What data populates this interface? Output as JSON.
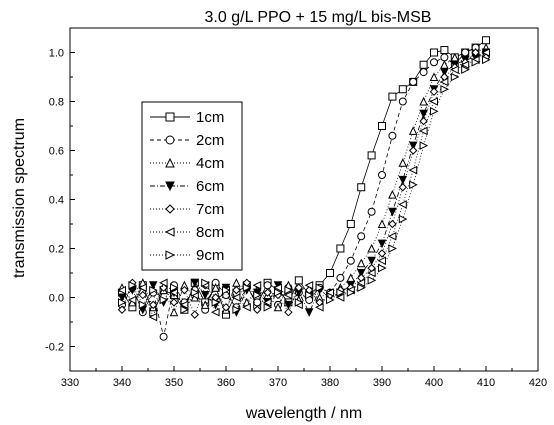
{
  "chart_data": {
    "type": "scatter",
    "title": "3.0 g/L PPO + 15 mg/L bis-MSB",
    "xlabel": "wavelength / nm",
    "ylabel": "transmission spectrum",
    "xlim": [
      330,
      420
    ],
    "ylim": [
      -0.3,
      1.1
    ],
    "x_ticks": [
      330,
      340,
      350,
      360,
      370,
      380,
      390,
      400,
      410,
      420
    ],
    "y_ticks": [
      -0.2,
      0.0,
      0.2,
      0.4,
      0.6,
      0.8,
      1.0
    ],
    "x_tick_labels": [
      "330",
      "340",
      "350",
      "360",
      "370",
      "380",
      "390",
      "400",
      "410",
      "420"
    ],
    "y_tick_labels": [
      "-0.2",
      "0.0",
      "0.2",
      "0.4",
      "0.6",
      "0.8",
      "1.0"
    ],
    "grid": false,
    "legend_position": "left",
    "series": [
      {
        "name": "1cm",
        "marker": "square-open",
        "line": "solid",
        "x": [
          340,
          342,
          344,
          346,
          348,
          350,
          352,
          354,
          356,
          358,
          360,
          362,
          364,
          366,
          368,
          370,
          372,
          374,
          376,
          378,
          380,
          382,
          384,
          386,
          388,
          390,
          392,
          394,
          396,
          398,
          400,
          402,
          404,
          406,
          408,
          410
        ],
        "y": [
          0.02,
          -0.04,
          0.05,
          -0.06,
          0.03,
          0.01,
          -0.05,
          0.06,
          -0.02,
          0.04,
          -0.07,
          0.02,
          0.05,
          -0.03,
          0.06,
          0.03,
          -0.02,
          0.07,
          0.01,
          0.05,
          0.1,
          0.2,
          0.3,
          0.45,
          0.58,
          0.7,
          0.82,
          0.85,
          0.88,
          0.95,
          1.0,
          1.01,
          0.98,
          1.0,
          1.02,
          1.05
        ]
      },
      {
        "name": "2cm",
        "marker": "circle-open",
        "line": "dashed",
        "x": [
          340,
          342,
          344,
          346,
          348,
          350,
          352,
          354,
          356,
          358,
          360,
          362,
          364,
          366,
          368,
          370,
          372,
          374,
          376,
          378,
          380,
          382,
          384,
          386,
          388,
          390,
          392,
          394,
          396,
          398,
          400,
          402,
          404,
          406,
          408,
          410
        ],
        "y": [
          -0.03,
          0.04,
          -0.06,
          0.02,
          -0.16,
          0.05,
          -0.02,
          0.03,
          -0.05,
          0.06,
          0.01,
          -0.04,
          0.04,
          -0.02,
          0.05,
          -0.03,
          0.04,
          0.02,
          -0.01,
          0.04,
          0.02,
          0.08,
          0.15,
          0.25,
          0.35,
          0.5,
          0.66,
          0.8,
          0.88,
          0.92,
          0.96,
          0.98,
          0.95,
          1.0,
          1.02,
          1.0
        ]
      },
      {
        "name": "4cm",
        "marker": "triangle-up-open",
        "line": "dotted",
        "x": [
          340,
          342,
          344,
          346,
          348,
          350,
          352,
          354,
          356,
          358,
          360,
          362,
          364,
          366,
          368,
          370,
          372,
          374,
          376,
          378,
          380,
          382,
          384,
          386,
          388,
          390,
          392,
          394,
          396,
          398,
          400,
          402,
          404,
          406,
          408,
          410
        ],
        "y": [
          0.04,
          -0.02,
          0.06,
          -0.04,
          0.03,
          -0.06,
          0.05,
          0.0,
          -0.03,
          0.04,
          -0.05,
          0.06,
          -0.02,
          0.03,
          0.01,
          -0.04,
          0.05,
          -0.01,
          0.03,
          0.0,
          0.02,
          0.04,
          0.08,
          0.14,
          0.2,
          0.3,
          0.42,
          0.55,
          0.68,
          0.8,
          0.9,
          0.95,
          0.98,
          0.96,
          1.0,
          1.02
        ]
      },
      {
        "name": "6cm",
        "marker": "triangle-down-filled",
        "line": "dashdot",
        "x": [
          340,
          342,
          344,
          346,
          348,
          350,
          352,
          354,
          356,
          358,
          360,
          362,
          364,
          366,
          368,
          370,
          372,
          374,
          376,
          378,
          380,
          382,
          384,
          386,
          388,
          390,
          392,
          394,
          396,
          398,
          400,
          402,
          404,
          406,
          408,
          410
        ],
        "y": [
          0.0,
          0.03,
          -0.05,
          0.05,
          -0.02,
          0.02,
          -0.04,
          0.06,
          0.01,
          -0.03,
          0.04,
          -0.06,
          0.03,
          0.02,
          -0.02,
          0.05,
          -0.03,
          0.02,
          -0.06,
          0.03,
          0.0,
          0.02,
          0.05,
          0.1,
          0.15,
          0.22,
          0.35,
          0.48,
          0.62,
          0.75,
          0.85,
          0.92,
          0.95,
          0.97,
          0.98,
          1.0
        ]
      },
      {
        "name": "7cm",
        "marker": "diamond-open",
        "line": "dotted",
        "x": [
          340,
          342,
          344,
          346,
          348,
          350,
          352,
          354,
          356,
          358,
          360,
          362,
          364,
          366,
          368,
          370,
          372,
          374,
          376,
          378,
          380,
          382,
          384,
          386,
          388,
          390,
          392,
          394,
          396,
          398,
          400,
          402,
          404,
          406,
          408,
          410
        ],
        "y": [
          -0.05,
          0.06,
          0.01,
          -0.03,
          0.04,
          -0.02,
          0.03,
          -0.07,
          0.05,
          0.0,
          -0.04,
          0.03,
          0.06,
          -0.05,
          0.02,
          0.01,
          -0.06,
          0.04,
          0.03,
          -0.02,
          0.01,
          0.03,
          0.04,
          0.08,
          0.12,
          0.18,
          0.3,
          0.45,
          0.6,
          0.72,
          0.84,
          0.9,
          0.94,
          0.96,
          1.0,
          0.98
        ]
      },
      {
        "name": "8cm",
        "marker": "triangle-left-open",
        "line": "dotted",
        "x": [
          340,
          342,
          344,
          346,
          348,
          350,
          352,
          354,
          356,
          358,
          360,
          362,
          364,
          366,
          368,
          370,
          372,
          374,
          376,
          378,
          380,
          382,
          384,
          386,
          388,
          390,
          392,
          394,
          396,
          398,
          400,
          402,
          404,
          406,
          408,
          410
        ],
        "y": [
          0.03,
          -0.01,
          0.04,
          -0.08,
          0.06,
          0.02,
          -0.03,
          0.01,
          0.05,
          -0.06,
          0.03,
          0.0,
          -0.04,
          0.05,
          -0.02,
          0.04,
          0.01,
          -0.03,
          0.05,
          -0.04,
          0.02,
          0.0,
          0.03,
          0.06,
          0.1,
          0.15,
          0.25,
          0.38,
          0.52,
          0.68,
          0.8,
          0.88,
          0.93,
          0.95,
          0.97,
          1.0
        ]
      },
      {
        "name": "9cm",
        "marker": "triangle-right-open",
        "line": "dotted",
        "x": [
          340,
          342,
          344,
          346,
          348,
          350,
          352,
          354,
          356,
          358,
          360,
          362,
          364,
          366,
          368,
          370,
          372,
          374,
          376,
          378,
          380,
          382,
          384,
          386,
          388,
          390,
          392,
          394,
          396,
          398,
          400,
          402,
          404,
          406,
          408,
          410
        ],
        "y": [
          -0.02,
          0.05,
          -0.03,
          0.03,
          -0.01,
          0.04,
          -0.05,
          0.02,
          0.06,
          -0.02,
          0.03,
          -0.05,
          0.04,
          0.01,
          -0.04,
          0.02,
          0.03,
          -0.02,
          0.01,
          0.04,
          -0.01,
          0.02,
          0.02,
          0.04,
          0.07,
          0.12,
          0.2,
          0.32,
          0.46,
          0.62,
          0.76,
          0.85,
          0.9,
          0.93,
          0.96,
          0.97
        ]
      }
    ]
  }
}
